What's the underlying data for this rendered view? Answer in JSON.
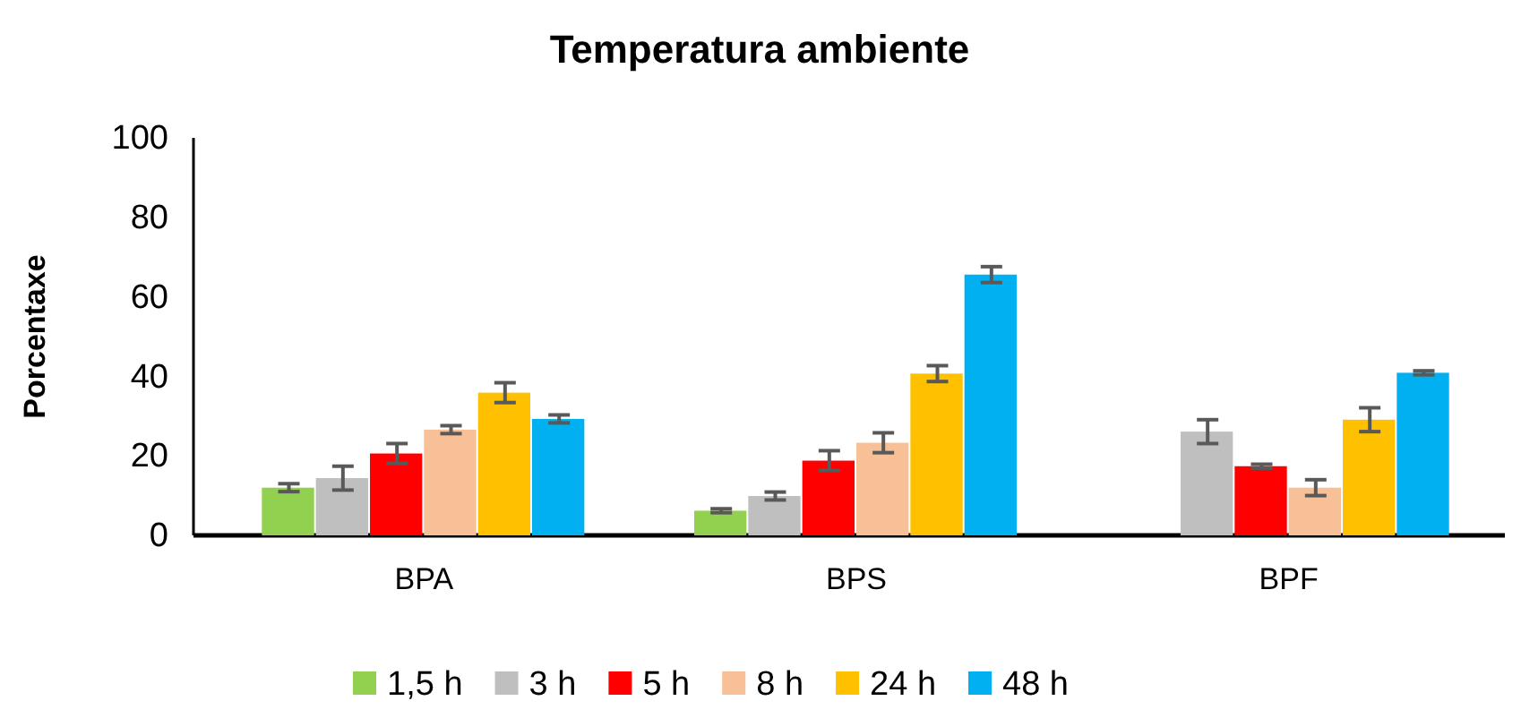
{
  "chart_data": {
    "type": "bar",
    "title": "Temperatura ambiente",
    "ylabel": "Porcentaxe",
    "categories": [
      "BPA",
      "BPS",
      "BPF"
    ],
    "series": [
      {
        "name": "1,5 h",
        "color": "#92d050",
        "values": [
          12.0,
          6.2,
          null
        ],
        "errors": [
          1,
          0.5,
          null
        ]
      },
      {
        "name": "3 h",
        "color": "#bfbfbf",
        "values": [
          14.4,
          9.9,
          26.1
        ],
        "errors": [
          3,
          1,
          3
        ]
      },
      {
        "name": "5 h",
        "color": "#ff0000",
        "values": [
          20.6,
          18.8,
          17.4
        ],
        "errors": [
          2.5,
          2.5,
          0.5
        ]
      },
      {
        "name": "8 h",
        "color": "#f8c096",
        "values": [
          26.6,
          23.3,
          12.0
        ],
        "errors": [
          1,
          2.5,
          2
        ]
      },
      {
        "name": "24 h",
        "color": "#ffc000",
        "values": [
          35.9,
          40.7,
          29.1
        ],
        "errors": [
          2.5,
          2,
          3
        ]
      },
      {
        "name": "48 h",
        "color": "#00b0f0",
        "values": [
          29.3,
          65.6,
          40.9
        ],
        "errors": [
          1,
          2,
          0.5
        ]
      }
    ],
    "ylim": [
      0,
      100
    ],
    "yticks": [
      0,
      20,
      40,
      60,
      80,
      100
    ],
    "grid": false,
    "legend": "bottom"
  }
}
